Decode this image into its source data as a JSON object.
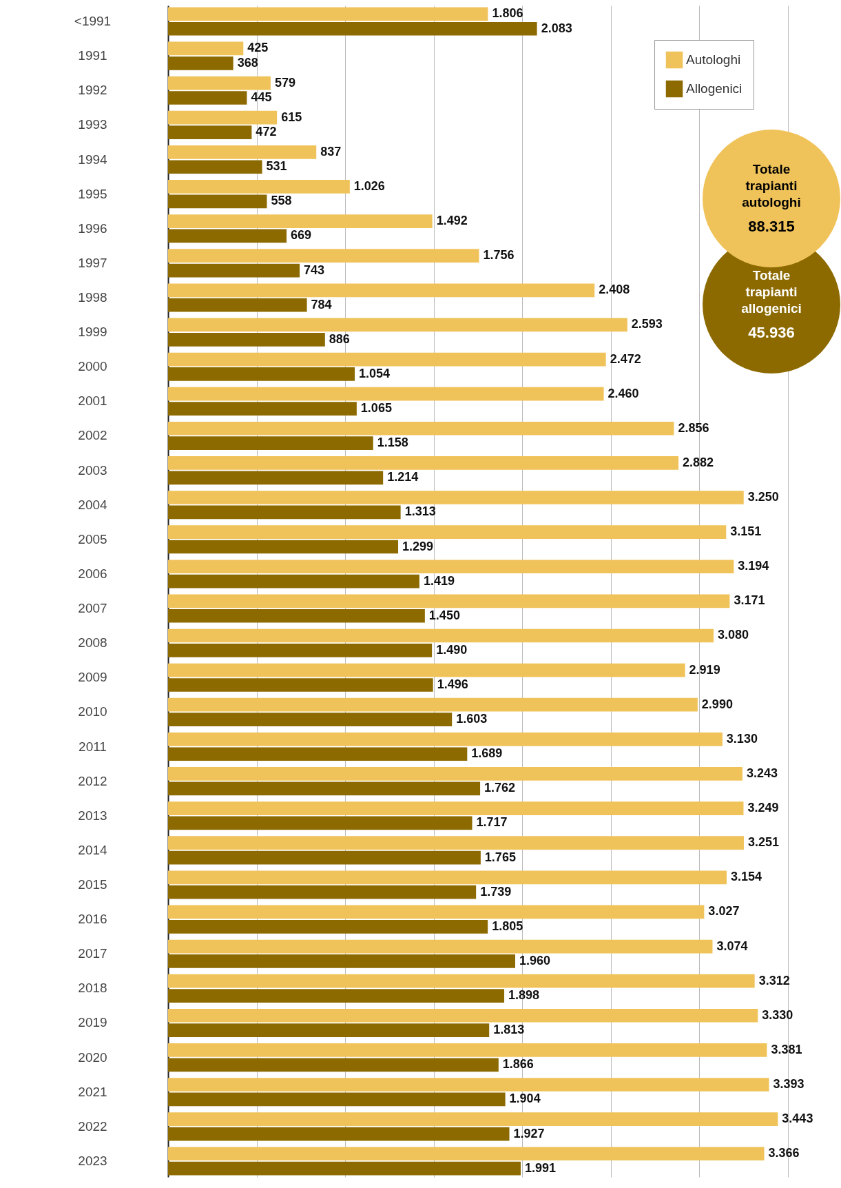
{
  "chart_data": {
    "type": "bar",
    "orientation": "horizontal",
    "categories": [
      "<1991",
      "1991",
      "1992",
      "1993",
      "1994",
      "1995",
      "1996",
      "1997",
      "1998",
      "1999",
      "2000",
      "2001",
      "2002",
      "2003",
      "2004",
      "2005",
      "2006",
      "2007",
      "2008",
      "2009",
      "2010",
      "2011",
      "2012",
      "2013",
      "2014",
      "2015",
      "2016",
      "2017",
      "2018",
      "2019",
      "2020",
      "2021",
      "2022",
      "2023"
    ],
    "series": [
      {
        "name": "Autologhi",
        "color": "#f0c35a",
        "values": [
          1806,
          425,
          579,
          615,
          837,
          1026,
          1492,
          1756,
          2408,
          2593,
          2472,
          2460,
          2856,
          2882,
          3250,
          3151,
          3194,
          3171,
          3080,
          2919,
          2990,
          3130,
          3243,
          3249,
          3251,
          3154,
          3027,
          3074,
          3312,
          3330,
          3381,
          3393,
          3443,
          3366
        ],
        "value_labels": [
          "1.806",
          "425",
          "579",
          "615",
          "837",
          "1.026",
          "1.492",
          "1.756",
          "2.408",
          "2.593",
          "2.472",
          "2.460",
          "2.856",
          "2.882",
          "3.250",
          "3.151",
          "3.194",
          "3.171",
          "3.080",
          "2.919",
          "2.990",
          "3.130",
          "3.243",
          "3.249",
          "3.251",
          "3.154",
          "3.027",
          "3.074",
          "3.312",
          "3.330",
          "3.381",
          "3.393",
          "3.443",
          "3.366"
        ]
      },
      {
        "name": "Allogenici",
        "color": "#8c6a00",
        "values": [
          2083,
          368,
          445,
          472,
          531,
          558,
          669,
          743,
          784,
          886,
          1054,
          1065,
          1158,
          1214,
          1313,
          1299,
          1419,
          1450,
          1490,
          1496,
          1603,
          1689,
          1762,
          1717,
          1765,
          1739,
          1805,
          1960,
          1898,
          1813,
          1866,
          1904,
          1927,
          1991
        ],
        "value_labels": [
          "2.083",
          "368",
          "445",
          "472",
          "531",
          "558",
          "669",
          "743",
          "784",
          "886",
          "1.054",
          "1.065",
          "1.158",
          "1.214",
          "1.313",
          "1.299",
          "1.419",
          "1.450",
          "1.490",
          "1.496",
          "1.603",
          "1.689",
          "1.762",
          "1.717",
          "1.765",
          "1.739",
          "1.805",
          "1.960",
          "1.898",
          "1.813",
          "1.866",
          "1.904",
          "1.927",
          "1.991"
        ]
      }
    ],
    "xlim": [
      0,
      3500
    ],
    "xticks": [
      {
        "value": 0,
        "label": null
      },
      {
        "value": 500,
        "label": null
      },
      {
        "value": 1000,
        "label": null
      },
      {
        "value": 1500,
        "label": null
      },
      {
        "value": 2000,
        "label": null
      },
      {
        "value": 2500,
        "label": null
      },
      {
        "value": 3000,
        "label": null
      },
      {
        "value": 3500,
        "label": null
      }
    ],
    "grid": "x",
    "legend": "top right",
    "tick_labels": "y",
    "annotations": [
      "Totale trapianti autologhi",
      "88.315",
      "Totale trapianti allogenici",
      "45.936"
    ]
  }
}
